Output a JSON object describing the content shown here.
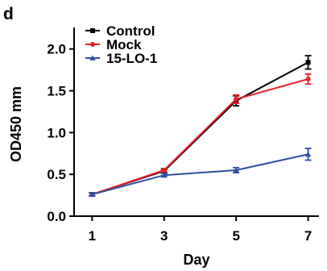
{
  "panel_label": "d",
  "chart_data": {
    "type": "line",
    "title": "",
    "xlabel": "Day",
    "ylabel": "OD450 mm",
    "x": [
      1,
      3,
      5,
      7
    ],
    "xticks": [
      "1",
      "3",
      "5",
      "7"
    ],
    "xlim": [
      0.5,
      7.3
    ],
    "ylim": [
      0,
      2.2
    ],
    "yticks": [
      "0.0",
      "0.5",
      "1.0",
      "1.5",
      "2.0"
    ],
    "grid": false,
    "legend": "top-left",
    "series": [
      {
        "name": "Control",
        "color": "#000000",
        "marker": "square",
        "values": [
          0.26,
          0.54,
          1.38,
          1.84
        ],
        "errors": [
          0.02,
          0.02,
          0.06,
          0.08
        ]
      },
      {
        "name": "Mock",
        "color": "#e8202a",
        "marker": "circle",
        "values": [
          0.26,
          0.55,
          1.4,
          1.64
        ],
        "errors": [
          0.02,
          0.02,
          0.05,
          0.06
        ]
      },
      {
        "name": "15-LO-1",
        "color": "#2e4ea3",
        "marker": "triangle",
        "values": [
          0.26,
          0.49,
          0.55,
          0.74
        ],
        "errors": [
          0.02,
          0.02,
          0.03,
          0.07
        ]
      }
    ]
  }
}
